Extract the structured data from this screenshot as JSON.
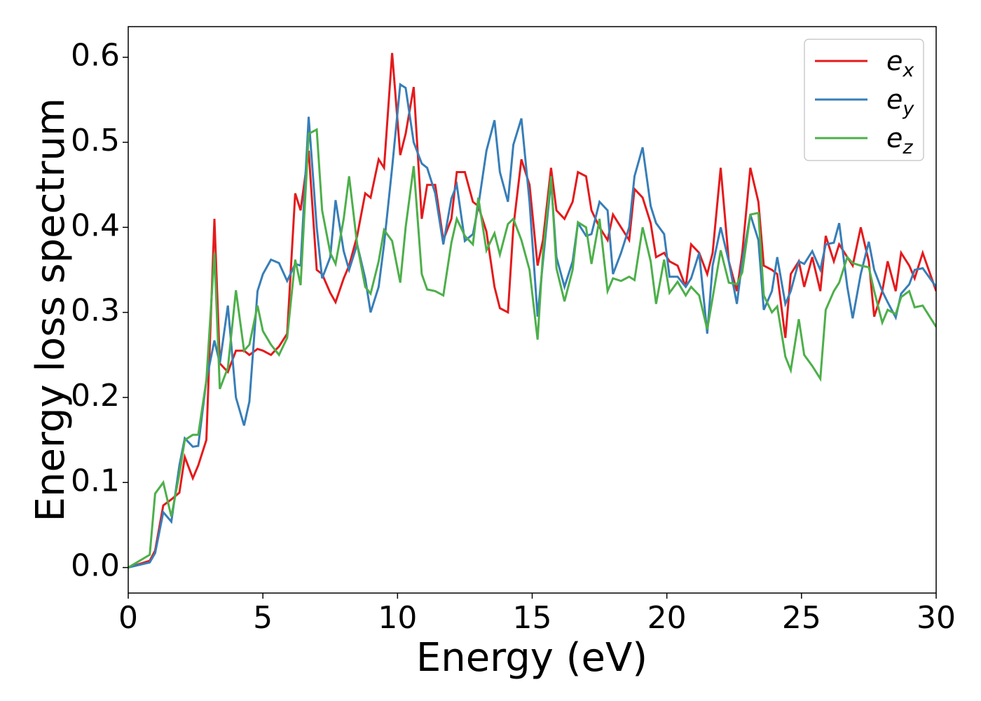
{
  "chart_data": {
    "type": "line",
    "xlabel": "Energy (eV)",
    "ylabel": "Energy loss spectrum",
    "xlim": [
      0,
      30
    ],
    "ylim": [
      -0.03,
      0.636
    ],
    "xticks": [
      0,
      5,
      10,
      15,
      20,
      25,
      30
    ],
    "yticks": [
      {
        "value": 0,
        "label": "0.0"
      },
      0.1,
      0.2,
      0.3,
      0.4,
      0.5,
      0.6
    ],
    "legend": "upper right",
    "x": [
      0,
      0.8,
      1.0,
      1.3,
      1.6,
      1.9,
      2.1,
      2.4,
      2.6,
      2.9,
      3.2,
      3.4,
      3.7,
      4.0,
      4.3,
      4.5,
      4.8,
      5.0,
      5.3,
      5.6,
      5.9,
      6.2,
      6.4,
      6.7,
      7.0,
      7.2,
      7.5,
      7.7,
      8.0,
      8.2,
      8.5,
      8.8,
      9.0,
      9.3,
      9.5,
      9.8,
      10.1,
      10.3,
      10.6,
      10.9,
      11.1,
      11.4,
      11.7,
      12.0,
      12.2,
      12.5,
      12.8,
      13.0,
      13.3,
      13.6,
      13.8,
      14.1,
      14.3,
      14.6,
      14.9,
      15.2,
      15.4,
      15.7,
      15.9,
      16.2,
      16.5,
      16.7,
      17.0,
      17.2,
      17.5,
      17.8,
      18.0,
      18.3,
      18.6,
      18.8,
      19.1,
      19.4,
      19.6,
      19.9,
      20.1,
      20.4,
      20.7,
      20.9,
      21.2,
      21.5,
      21.7,
      22.0,
      22.3,
      22.6,
      22.8,
      23.1,
      23.4,
      23.6,
      23.9,
      24.1,
      24.4,
      24.6,
      24.9,
      25.1,
      25.4,
      25.7,
      25.9,
      26.2,
      26.4,
      26.7,
      26.9,
      27.2,
      27.5,
      27.7,
      28.0,
      28.2,
      28.5,
      28.7,
      29.0,
      29.2,
      29.5,
      30
    ],
    "series": [
      {
        "name": "e_x",
        "color": "#e41a1c",
        "values": [
          0,
          0.008,
          0.02,
          0.073,
          0.08,
          0.088,
          0.13,
          0.105,
          0.12,
          0.15,
          0.41,
          0.24,
          0.23,
          0.255,
          0.255,
          0.25,
          0.257,
          0.255,
          0.25,
          0.26,
          0.275,
          0.44,
          0.42,
          0.49,
          0.35,
          0.345,
          0.323,
          0.312,
          0.34,
          0.355,
          0.39,
          0.44,
          0.435,
          0.48,
          0.47,
          0.605,
          0.485,
          0.51,
          0.565,
          0.41,
          0.45,
          0.45,
          0.385,
          0.41,
          0.465,
          0.465,
          0.43,
          0.425,
          0.395,
          0.33,
          0.305,
          0.3,
          0.4,
          0.48,
          0.45,
          0.355,
          0.385,
          0.47,
          0.42,
          0.41,
          0.43,
          0.465,
          0.46,
          0.42,
          0.4,
          0.385,
          0.415,
          0.4,
          0.385,
          0.445,
          0.435,
          0.405,
          0.365,
          0.37,
          0.36,
          0.355,
          0.33,
          0.38,
          0.37,
          0.345,
          0.37,
          0.47,
          0.36,
          0.325,
          0.37,
          0.47,
          0.43,
          0.355,
          0.35,
          0.345,
          0.27,
          0.345,
          0.36,
          0.33,
          0.365,
          0.325,
          0.39,
          0.36,
          0.38,
          0.365,
          0.355,
          0.4,
          0.36,
          0.295,
          0.325,
          0.36,
          0.325,
          0.37,
          0.355,
          0.34,
          0.37,
          0.325
        ]
      },
      {
        "name": "e_y",
        "color": "#377eb8",
        "values": [
          0,
          0.006,
          0.017,
          0.065,
          0.054,
          0.12,
          0.152,
          0.142,
          0.143,
          0.22,
          0.267,
          0.24,
          0.308,
          0.2,
          0.167,
          0.195,
          0.325,
          0.345,
          0.362,
          0.358,
          0.337,
          0.357,
          0.355,
          0.53,
          0.4,
          0.34,
          0.365,
          0.432,
          0.372,
          0.35,
          0.38,
          0.34,
          0.3,
          0.33,
          0.38,
          0.47,
          0.568,
          0.564,
          0.5,
          0.475,
          0.47,
          0.44,
          0.38,
          0.434,
          0.45,
          0.384,
          0.392,
          0.425,
          0.49,
          0.526,
          0.465,
          0.43,
          0.497,
          0.528,
          0.43,
          0.295,
          0.36,
          0.455,
          0.365,
          0.33,
          0.36,
          0.405,
          0.39,
          0.392,
          0.43,
          0.42,
          0.345,
          0.37,
          0.4,
          0.46,
          0.494,
          0.425,
          0.405,
          0.392,
          0.342,
          0.342,
          0.33,
          0.34,
          0.37,
          0.275,
          0.355,
          0.4,
          0.36,
          0.31,
          0.36,
          0.415,
          0.385,
          0.303,
          0.325,
          0.365,
          0.31,
          0.325,
          0.36,
          0.357,
          0.372,
          0.35,
          0.38,
          0.382,
          0.405,
          0.33,
          0.293,
          0.345,
          0.383,
          0.35,
          0.325,
          0.312,
          0.294,
          0.322,
          0.333,
          0.35,
          0.352,
          0.33
        ]
      },
      {
        "name": "e_z",
        "color": "#4daf4a",
        "values": [
          0,
          0.015,
          0.087,
          0.1,
          0.06,
          0.11,
          0.15,
          0.156,
          0.156,
          0.22,
          0.37,
          0.21,
          0.235,
          0.326,
          0.255,
          0.262,
          0.308,
          0.278,
          0.262,
          0.25,
          0.27,
          0.362,
          0.332,
          0.51,
          0.515,
          0.42,
          0.37,
          0.357,
          0.41,
          0.46,
          0.38,
          0.33,
          0.322,
          0.36,
          0.397,
          0.384,
          0.335,
          0.4,
          0.472,
          0.345,
          0.327,
          0.325,
          0.32,
          0.382,
          0.41,
          0.39,
          0.38,
          0.435,
          0.373,
          0.393,
          0.368,
          0.404,
          0.41,
          0.385,
          0.35,
          0.268,
          0.37,
          0.46,
          0.352,
          0.313,
          0.35,
          0.406,
          0.4,
          0.357,
          0.41,
          0.325,
          0.34,
          0.337,
          0.342,
          0.338,
          0.4,
          0.36,
          0.31,
          0.362,
          0.323,
          0.336,
          0.32,
          0.33,
          0.32,
          0.28,
          0.317,
          0.373,
          0.335,
          0.333,
          0.347,
          0.415,
          0.417,
          0.32,
          0.3,
          0.307,
          0.248,
          0.232,
          0.292,
          0.25,
          0.237,
          0.222,
          0.303,
          0.325,
          0.335,
          0.365,
          0.358,
          0.355,
          0.353,
          0.325,
          0.288,
          0.303,
          0.298,
          0.318,
          0.325,
          0.306,
          0.308,
          0.283
        ]
      }
    ]
  }
}
